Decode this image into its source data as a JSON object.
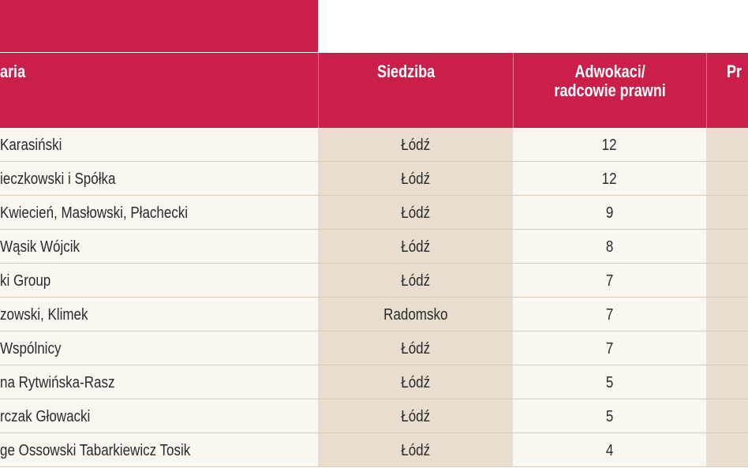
{
  "table": {
    "headers": [
      "aria",
      "Siedziba",
      "Adwokaci/ radcowie prawni",
      "Pr"
    ],
    "header_lines": {
      "col3": [
        "Adwokaci/",
        "radcowie prawni"
      ]
    },
    "rows": [
      {
        "name": "Karasiński",
        "city": "Łódź",
        "lawyers": "12"
      },
      {
        "name": "ieczkowski i Spółka",
        "city": "Łódź",
        "lawyers": "12"
      },
      {
        "name": "Kwiecień, Masłowski, Płachecki",
        "city": "Łódź",
        "lawyers": "9"
      },
      {
        "name": "Wąsik Wójcik",
        "city": "Łódź",
        "lawyers": "8"
      },
      {
        "name": "ki Group",
        "city": "Łódź",
        "lawyers": "7"
      },
      {
        "name": "zowski, Klimek",
        "city": "Radomsko",
        "lawyers": "7"
      },
      {
        "name": "Wspólnicy",
        "city": "Łódź",
        "lawyers": "7"
      },
      {
        "name": "na Rytwińska-Rasz",
        "city": "Łódź",
        "lawyers": "5"
      },
      {
        "name": "rczak Głowacki",
        "city": "Łódź",
        "lawyers": "5"
      },
      {
        "name": "ge Ossowski Tabarkiewicz Tosik",
        "city": "Łódź",
        "lawyers": "4"
      }
    ]
  },
  "colors": {
    "header": "#c91f4a",
    "row_light": "#faf7f1",
    "row_dark": "#e8ddcf"
  }
}
